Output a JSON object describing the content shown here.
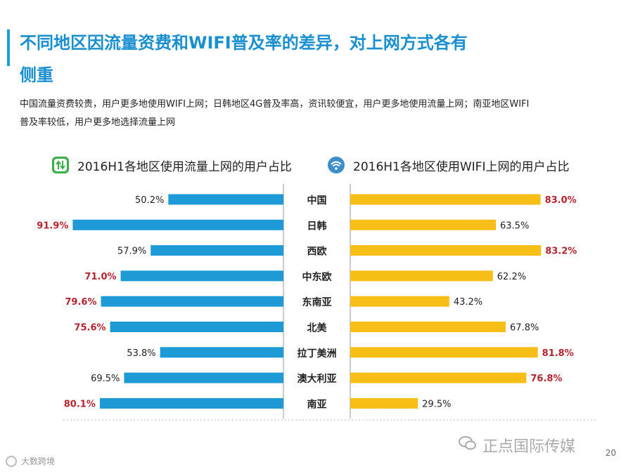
{
  "title": "不同地区因流量资费和WIFI普及率的差异，对上网方式各有侧重",
  "description": "中国流量资费较贵，用户更多地使用WIFI上网；日韩地区4G普及率高，资讯较便宜，用户更多地使用流量上网；南亚地区WIFI普及率较低，用户更多地选择流量上网",
  "colors": {
    "accent": "#1a8fd0",
    "mobile_bar": "#1e9ad6",
    "wifi_bar": "#f6be17",
    "highlight_text": "#b3242f"
  },
  "left_header": "2016H1各地区使用流量上网的用户占比",
  "right_header": "2016H1各地区使用WIFI上网的用户占比",
  "icons": {
    "left": "mobile-data-arrows-icon",
    "right": "wifi-icon"
  },
  "chart_data": {
    "type": "bar",
    "orientation": "horizontal-butterfly",
    "categories": [
      "中国",
      "日韩",
      "西欧",
      "中东欧",
      "东南亚",
      "北美",
      "拉丁美洲",
      "澳大利亚",
      "南亚"
    ],
    "series": [
      {
        "name": "2016H1各地区使用流量上网的用户占比",
        "values": [
          50.2,
          91.9,
          57.9,
          71.0,
          79.6,
          75.6,
          53.8,
          69.5,
          80.1
        ],
        "labels": [
          "50.2%",
          "91.9%",
          "57.9%",
          "71.0%",
          "79.6%",
          "75.6%",
          "53.8%",
          "69.5%",
          "80.1%"
        ],
        "highlight": [
          false,
          true,
          false,
          true,
          true,
          true,
          false,
          false,
          true
        ]
      },
      {
        "name": "2016H1各地区使用WIFI上网的用户占比",
        "values": [
          83.0,
          63.5,
          83.2,
          62.2,
          43.2,
          67.8,
          81.8,
          76.8,
          29.5
        ],
        "labels": [
          "83.0%",
          "63.5%",
          "83.2%",
          "62.2%",
          "43.2%",
          "67.8%",
          "81.8%",
          "76.8%",
          "29.5%"
        ],
        "highlight": [
          true,
          false,
          true,
          false,
          false,
          false,
          true,
          true,
          false
        ]
      }
    ],
    "xlim": [
      0,
      100
    ]
  },
  "footer": {
    "watermark_left": "大数跨境",
    "brand": "正点国际传媒",
    "page_number": "20"
  }
}
